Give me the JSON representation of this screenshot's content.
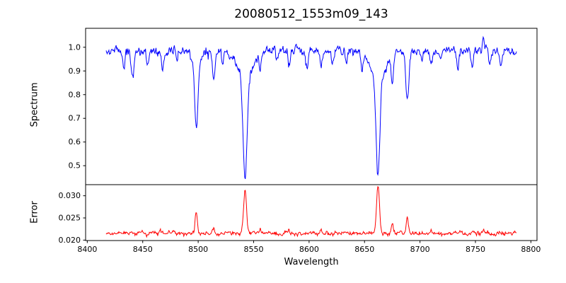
{
  "figure": {
    "background": "#ffffff",
    "frame_color": "#000000"
  },
  "chart_data": {
    "type": "line",
    "title": "20080512_1553m09_143",
    "legend": "none",
    "grid": false,
    "x_axis": {
      "label": "Wavelength",
      "range": [
        8398.5,
        8805.5
      ],
      "ticks": [
        8400,
        8450,
        8500,
        8550,
        8600,
        8650,
        8700,
        8750,
        8800
      ],
      "tick_labels": [
        "8400",
        "8450",
        "8500",
        "8550",
        "8600",
        "8650",
        "8700",
        "8750",
        "8800"
      ]
    },
    "panels": [
      {
        "id": "spectrum",
        "ylabel": "Spectrum",
        "line_color": "#0000ff",
        "y_range": [
          0.42,
          1.08
        ],
        "y_ticks": [
          0.5,
          0.6,
          0.7,
          0.8,
          0.9,
          1.0
        ],
        "y_tick_labels": [
          "0.5",
          "0.6",
          "0.7",
          "0.8",
          "0.9",
          "1.0"
        ],
        "data_wavelength_range": [
          8417,
          8787
        ],
        "absorption_features": [
          {
            "wavelength": 8498,
            "min_flux": 0.65
          },
          {
            "wavelength": 8514,
            "min_flux": 0.87
          },
          {
            "wavelength": 8542,
            "min_flux": 0.45
          },
          {
            "wavelength": 8662,
            "min_flux": 0.46
          },
          {
            "wavelength": 8675,
            "min_flux": 0.86
          },
          {
            "wavelength": 8688,
            "min_flux": 0.77
          }
        ],
        "model": {
          "x_start": 8417,
          "x_end": 8787,
          "step": 0.5,
          "seed": 7,
          "continuum": 0.985,
          "noise_amp": 0.009,
          "noise_rho": 0.45,
          "absorption_lines": [
            [
              8433,
              0.09,
              1.0
            ],
            [
              8441,
              0.12,
              1.3
            ],
            [
              8454,
              0.055,
              1.0
            ],
            [
              8468,
              0.09,
              1.1
            ],
            [
              8481,
              0.04,
              0.9
            ],
            [
              8498.3,
              0.28,
              1.4
            ],
            [
              8498.3,
              0.05,
              4.0
            ],
            [
              8514,
              0.115,
              1.2
            ],
            [
              8522,
              0.05,
              0.9
            ],
            [
              8542.3,
              0.42,
              1.8
            ],
            [
              8542.3,
              0.115,
              7.0
            ],
            [
              8556,
              0.055,
              1.0
            ],
            [
              8571,
              0.04,
              0.9
            ],
            [
              8582,
              0.06,
              1.0
            ],
            [
              8598,
              0.06,
              1.0
            ],
            [
              8611,
              0.065,
              1.1
            ],
            [
              8621,
              0.06,
              1.0
            ],
            [
              8634,
              0.04,
              0.9
            ],
            [
              8648,
              0.06,
              1.1
            ],
            [
              8662.2,
              0.41,
              1.7
            ],
            [
              8662.2,
              0.115,
              6.5
            ],
            [
              8675,
              0.125,
              1.1
            ],
            [
              8688.6,
              0.21,
              1.4
            ],
            [
              8702,
              0.04,
              0.9
            ],
            [
              8710,
              0.065,
              1.0
            ],
            [
              8718,
              0.04,
              0.9
            ],
            [
              8734,
              0.075,
              1.1
            ],
            [
              8747,
              0.06,
              1.0
            ],
            [
              8757,
              -0.055,
              0.7
            ],
            [
              8763,
              0.07,
              1.0
            ],
            [
              8773,
              0.055,
              0.9
            ]
          ]
        }
      },
      {
        "id": "error",
        "ylabel": "Error",
        "line_color": "#ff0000",
        "y_range": [
          0.0199,
          0.0325
        ],
        "y_ticks": [
          0.02,
          0.025,
          0.03
        ],
        "y_tick_labels": [
          "0.020",
          "0.025",
          "0.030"
        ],
        "data_wavelength_range": [
          8417,
          8787
        ],
        "error_peaks": [
          {
            "wavelength": 8498,
            "max_error": 0.0265
          },
          {
            "wavelength": 8542,
            "max_error": 0.0315
          },
          {
            "wavelength": 8662,
            "max_error": 0.0322
          },
          {
            "wavelength": 8675,
            "max_error": 0.0237
          },
          {
            "wavelength": 8688,
            "max_error": 0.0253
          }
        ],
        "model": {
          "x_start": 8417,
          "x_end": 8787,
          "step": 0.5,
          "seed": 13,
          "baseline": 0.0215,
          "noise_amp": 0.00022,
          "noise_rho": 0.4,
          "peaks": [
            [
              8466,
              0.001,
              0.9
            ],
            [
              8498.3,
              0.005,
              1.0
            ],
            [
              8514,
              0.0011,
              0.9
            ],
            [
              8542.3,
              0.01,
              1.3
            ],
            [
              8556,
              0.001,
              0.9
            ],
            [
              8582,
              0.0007,
              0.8
            ],
            [
              8611,
              0.0007,
              0.8
            ],
            [
              8662.2,
              0.0108,
              1.3
            ],
            [
              8675,
              0.0022,
              0.9
            ],
            [
              8688.6,
              0.0038,
              1.0
            ],
            [
              8710,
              0.0006,
              0.8
            ],
            [
              8757,
              0.0009,
              0.8
            ]
          ]
        }
      }
    ]
  }
}
